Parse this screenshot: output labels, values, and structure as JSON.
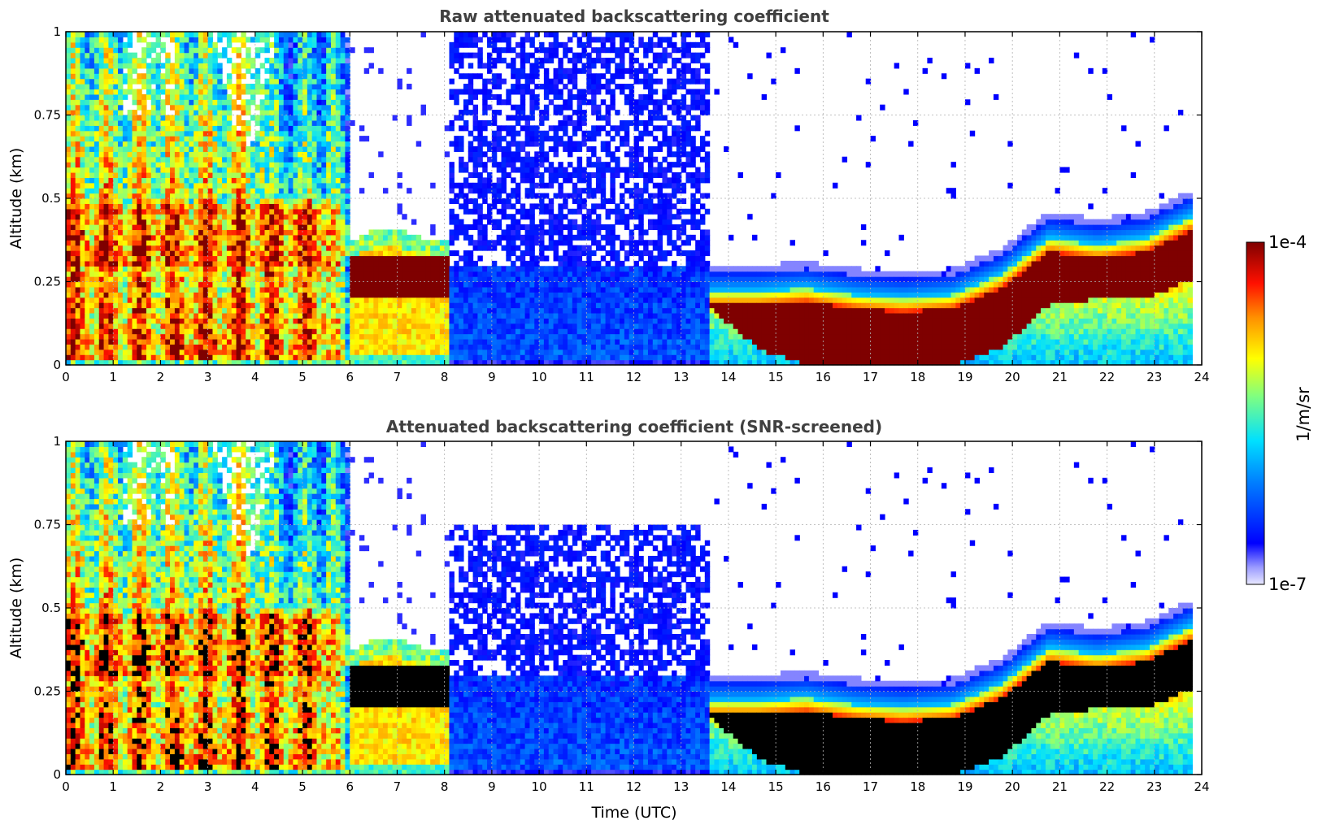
{
  "chart_data": [
    {
      "type": "heatmap",
      "title": "Raw attenuated backscattering coefficient",
      "xlabel": "",
      "ylabel": "Altitude (km)",
      "xlim": [
        0,
        24
      ],
      "ylim": [
        0,
        1
      ],
      "x_ticks": [
        "0",
        "1",
        "2",
        "3",
        "4",
        "5",
        "6",
        "7",
        "8",
        "9",
        "10",
        "11",
        "12",
        "13",
        "14",
        "15",
        "16",
        "17",
        "18",
        "19",
        "20",
        "21",
        "22",
        "23",
        "24"
      ],
      "y_ticks": [
        "0",
        "0.25",
        "0.5",
        "0.75",
        "1"
      ],
      "grid": true,
      "screened": false,
      "layers": [
        {
          "x": [
            0,
            6
          ],
          "top_alt": 1.0,
          "description_level": "high"
        },
        {
          "x": [
            6,
            8
          ],
          "top_alt": 0.38,
          "cloud_alt": [
            0.2,
            0.33
          ]
        },
        {
          "x": [
            8,
            13.6
          ],
          "top_alt": 1.0,
          "description_level": "low"
        },
        {
          "x": [
            13.6,
            23.8
          ],
          "cloud_base_alt": [
            0.17,
            0.0,
            0.0,
            0.05,
            0.2,
            0.25
          ],
          "cloud_top_alt": [
            0.22,
            0.23,
            0.21,
            0.2,
            0.38,
            0.45
          ]
        }
      ]
    },
    {
      "type": "heatmap",
      "title": "Attenuated backscattering coefficient (SNR-screened)",
      "xlabel": "Time (UTC)",
      "ylabel": "Altitude (km)",
      "xlim": [
        0,
        24
      ],
      "ylim": [
        0,
        1
      ],
      "x_ticks": [
        "0",
        "1",
        "2",
        "3",
        "4",
        "5",
        "6",
        "7",
        "8",
        "9",
        "10",
        "11",
        "12",
        "13",
        "14",
        "15",
        "16",
        "17",
        "18",
        "19",
        "20",
        "21",
        "22",
        "23",
        "24"
      ],
      "y_ticks": [
        "0",
        "0.25",
        "0.5",
        "0.75",
        "1"
      ],
      "grid": true,
      "screened": true,
      "saturated_color": "#000000"
    }
  ],
  "colorbar": {
    "min_label": "1e-7",
    "max_label": "1e-4",
    "unit_label": "1/m/sr",
    "colormap": "jet",
    "saturated_color": "#7f0000",
    "low_color": "#e8e8ff"
  }
}
